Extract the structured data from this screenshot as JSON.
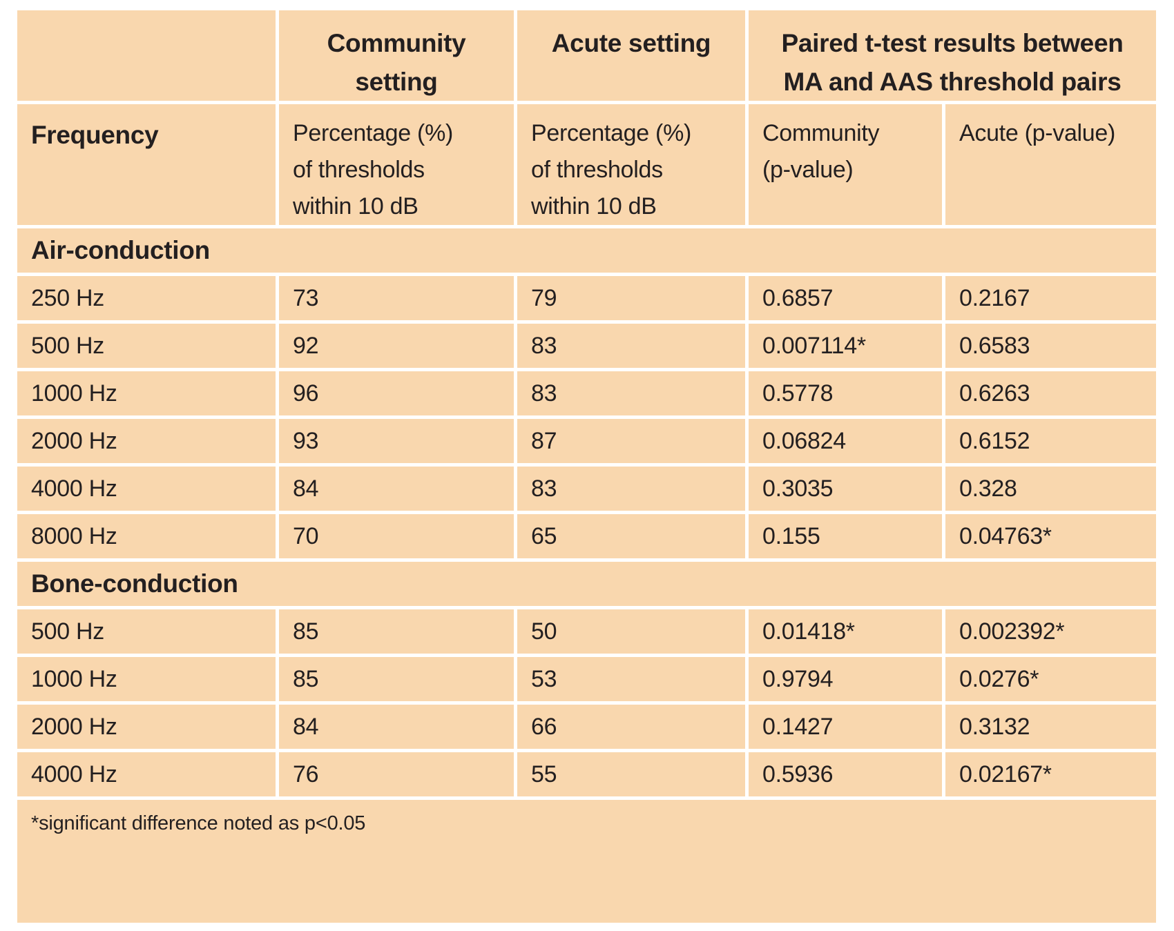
{
  "colors": {
    "cell_background": "#f9d7ae",
    "gridline": "#ffffff",
    "text": "#231f20"
  },
  "header": {
    "community_setting": "Community\nsetting",
    "acute_setting": "Acute setting",
    "paired_ttest_title": "Paired t-test results between\nMA and AAS threshold pairs",
    "frequency": "Frequency",
    "community_percentage": "Percentage (%)\nof thresholds\nwithin 10 dB",
    "acute_percentage": "Percentage (%)\nof thresholds\nwithin 10 dB",
    "community_pvalue": "Community\n(p-value)",
    "acute_pvalue": "Acute (p-value)"
  },
  "sections": [
    {
      "label": "Air-conduction",
      "rows": [
        [
          "250 Hz",
          "73",
          "79",
          "0.6857",
          "0.2167"
        ],
        [
          "500 Hz",
          "92",
          "83",
          "0.007114*",
          "0.6583"
        ],
        [
          "1000 Hz",
          "96",
          "83",
          "0.5778",
          "0.6263"
        ],
        [
          "2000 Hz",
          "93",
          "87",
          "0.06824",
          "0.6152"
        ],
        [
          "4000 Hz",
          "84",
          "83",
          "0.3035",
          "0.328"
        ],
        [
          "8000 Hz",
          "70",
          "65",
          "0.155",
          "0.04763*"
        ]
      ]
    },
    {
      "label": "Bone-conduction",
      "rows": [
        [
          "500 Hz",
          "85",
          "50",
          "0.01418*",
          "0.002392*"
        ],
        [
          "1000 Hz",
          "85",
          "53",
          "0.9794",
          "0.0276*"
        ],
        [
          "2000 Hz",
          "84",
          "66",
          "0.1427",
          "0.3132"
        ],
        [
          "4000 Hz",
          "76",
          "55",
          "0.5936",
          "0.02167*"
        ]
      ]
    }
  ],
  "footnote": "*significant difference noted as p<0.05"
}
